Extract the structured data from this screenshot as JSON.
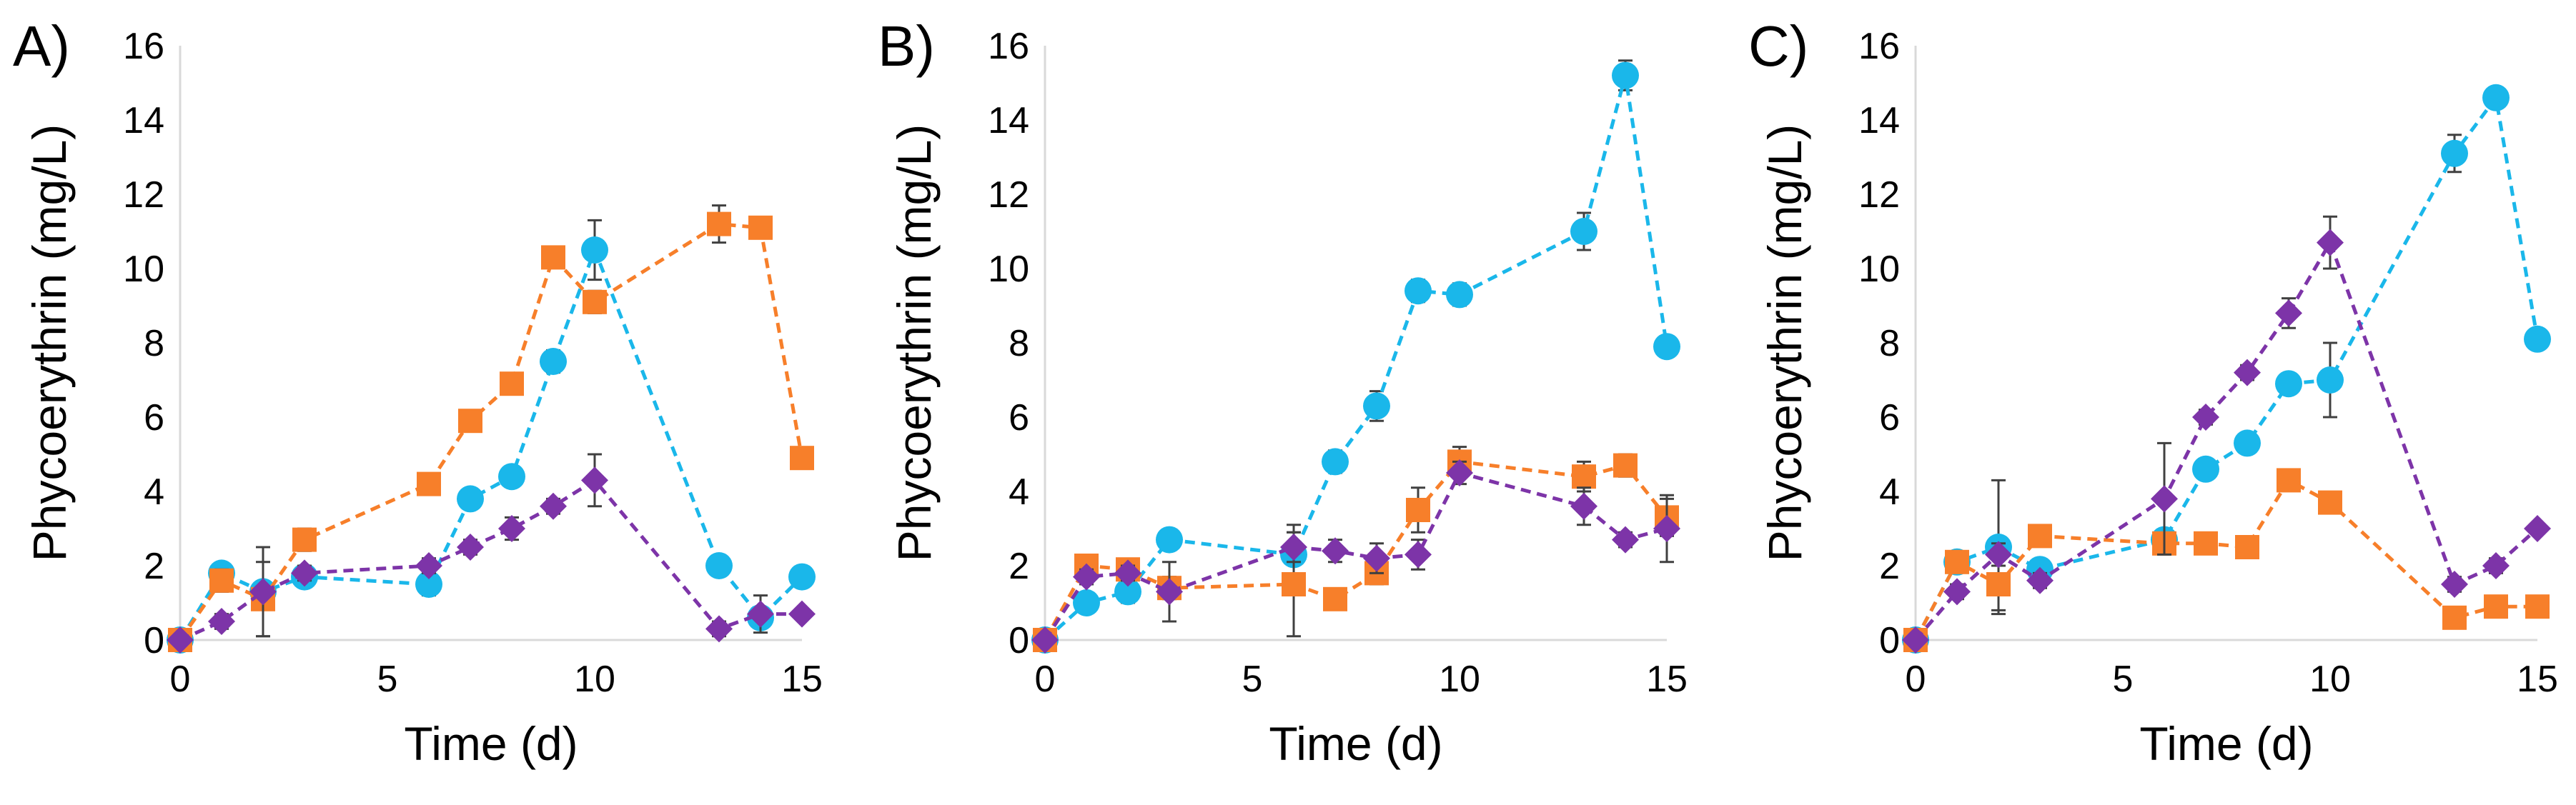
{
  "colors": {
    "cyan": "#1ab7ea",
    "orange": "#f77f2a",
    "purple": "#7d34a8"
  },
  "chart_data": [
    {
      "type": "line",
      "panel_label": "A)",
      "title": "",
      "xlabel": "Time (d)",
      "ylabel": "Phycoerythrin (mg/L)",
      "xlim": [
        0,
        15
      ],
      "ylim": [
        0,
        16
      ],
      "xticks": [
        "0",
        "5",
        "10",
        "15"
      ],
      "yticks": [
        "0",
        "2",
        "4",
        "6",
        "8",
        "10",
        "12",
        "14",
        "16"
      ],
      "grid": false,
      "series": [
        {
          "name": "cyan",
          "marker": "circle",
          "color": "#1ab7ea",
          "x": [
            0,
            1,
            2,
            3,
            6,
            7,
            8,
            9,
            10,
            13,
            14,
            15
          ],
          "y": [
            0,
            1.8,
            1.3,
            1.7,
            1.5,
            3.8,
            4.4,
            7.5,
            10.5,
            2.0,
            0.6,
            1.7
          ],
          "err": [
            0.1,
            0.2,
            0.2,
            0.2,
            0.3,
            0.2,
            0.2,
            0.3,
            0.8,
            0.2,
            0.2,
            0.1
          ]
        },
        {
          "name": "orange",
          "marker": "square",
          "color": "#f77f2a",
          "x": [
            0,
            1,
            2,
            3,
            6,
            7,
            8,
            9,
            10,
            13,
            14,
            15
          ],
          "y": [
            0,
            1.6,
            1.1,
            2.7,
            4.2,
            5.9,
            6.9,
            10.3,
            9.1,
            11.2,
            11.1,
            4.9
          ],
          "err": [
            0.1,
            0.3,
            1.0,
            0.3,
            0.1,
            0.2,
            0.2,
            0.2,
            0.3,
            0.5,
            0.2,
            0.2
          ]
        },
        {
          "name": "purple",
          "marker": "diamond",
          "color": "#7d34a8",
          "x": [
            0,
            1,
            2,
            3,
            6,
            7,
            8,
            9,
            10,
            13,
            14,
            15
          ],
          "y": [
            0,
            0.5,
            1.3,
            1.8,
            2.0,
            2.5,
            3.0,
            3.6,
            4.3,
            0.3,
            0.7,
            0.7
          ],
          "err": [
            0.1,
            0.2,
            1.2,
            0.2,
            0.2,
            0.2,
            0.3,
            0.2,
            0.7,
            0.2,
            0.5,
            0.1
          ]
        }
      ]
    },
    {
      "type": "line",
      "panel_label": "B)",
      "title": "",
      "xlabel": "Time (d)",
      "ylabel": "Phycoerythrin (mg/L)",
      "xlim": [
        0,
        15
      ],
      "ylim": [
        0,
        16
      ],
      "xticks": [
        "0",
        "5",
        "10",
        "15"
      ],
      "yticks": [
        "0",
        "2",
        "4",
        "6",
        "8",
        "10",
        "12",
        "14",
        "16"
      ],
      "grid": false,
      "series": [
        {
          "name": "cyan",
          "marker": "circle",
          "color": "#1ab7ea",
          "x": [
            0,
            1,
            2,
            3,
            6,
            7,
            8,
            9,
            10,
            13,
            14,
            15
          ],
          "y": [
            0,
            1.0,
            1.3,
            2.7,
            2.3,
            4.8,
            6.3,
            9.4,
            9.3,
            11.0,
            15.2,
            7.9
          ],
          "err": [
            0.1,
            0.2,
            0.3,
            0.2,
            0.8,
            0.3,
            0.4,
            0.3,
            0.3,
            0.5,
            0.4,
            0.2
          ]
        },
        {
          "name": "orange",
          "marker": "square",
          "color": "#f77f2a",
          "x": [
            0,
            1,
            2,
            3,
            6,
            7,
            8,
            9,
            10,
            13,
            14,
            15
          ],
          "y": [
            0,
            2.0,
            1.9,
            1.4,
            1.5,
            1.1,
            1.8,
            3.5,
            4.8,
            4.4,
            4.7,
            3.3
          ],
          "err": [
            0.1,
            0.2,
            0.2,
            0.3,
            1.4,
            0.2,
            0.3,
            0.6,
            0.4,
            0.4,
            0.3,
            0.5
          ]
        },
        {
          "name": "purple",
          "marker": "diamond",
          "color": "#7d34a8",
          "x": [
            0,
            1,
            2,
            3,
            6,
            7,
            8,
            9,
            10,
            13,
            14,
            15
          ],
          "y": [
            0,
            1.7,
            1.8,
            1.3,
            2.5,
            2.4,
            2.2,
            2.3,
            4.5,
            3.6,
            2.7,
            3.0
          ],
          "err": [
            0.1,
            0.2,
            0.2,
            0.8,
            0.4,
            0.3,
            0.4,
            0.4,
            0.3,
            0.5,
            0.2,
            0.9
          ]
        }
      ]
    },
    {
      "type": "line",
      "panel_label": "C)",
      "title": "",
      "xlabel": "Time (d)",
      "ylabel": "Phycoerythrin (mg/L)",
      "xlim": [
        0,
        15
      ],
      "ylim": [
        0,
        16
      ],
      "xticks": [
        "0",
        "5",
        "10",
        "15"
      ],
      "yticks": [
        "0",
        "2",
        "4",
        "6",
        "8",
        "10",
        "12",
        "14",
        "16"
      ],
      "grid": false,
      "series": [
        {
          "name": "cyan",
          "marker": "circle",
          "color": "#1ab7ea",
          "x": [
            0,
            1,
            2,
            3,
            6,
            7,
            8,
            9,
            10,
            13,
            14,
            15
          ],
          "y": [
            0,
            2.1,
            2.5,
            1.9,
            2.7,
            4.6,
            5.3,
            6.9,
            7.0,
            13.1,
            14.6,
            8.1
          ],
          "err": [
            0.1,
            0.2,
            1.8,
            0.2,
            0.2,
            0.2,
            0.2,
            0.2,
            1.0,
            0.5,
            0.2,
            0.2
          ]
        },
        {
          "name": "orange",
          "marker": "square",
          "color": "#f77f2a",
          "x": [
            0,
            1,
            2,
            3,
            6,
            7,
            8,
            9,
            10,
            13,
            14,
            15
          ],
          "y": [
            0,
            2.1,
            1.5,
            2.8,
            2.6,
            2.6,
            2.5,
            4.3,
            3.7,
            0.6,
            0.9,
            0.9
          ],
          "err": [
            0.1,
            0.2,
            0.7,
            0.2,
            0.2,
            0.2,
            0.2,
            0.2,
            0.2,
            0.2,
            0.2,
            0.2
          ]
        },
        {
          "name": "purple",
          "marker": "diamond",
          "color": "#7d34a8",
          "x": [
            0,
            1,
            2,
            3,
            6,
            7,
            8,
            9,
            10,
            13,
            14,
            15
          ],
          "y": [
            0,
            1.3,
            2.3,
            1.6,
            3.8,
            6.0,
            7.2,
            8.8,
            10.7,
            1.5,
            2.0,
            3.0
          ],
          "err": [
            0.1,
            0.2,
            0.3,
            0.2,
            1.5,
            0.2,
            0.2,
            0.4,
            0.7,
            0.2,
            0.2,
            0.1
          ]
        }
      ]
    }
  ]
}
